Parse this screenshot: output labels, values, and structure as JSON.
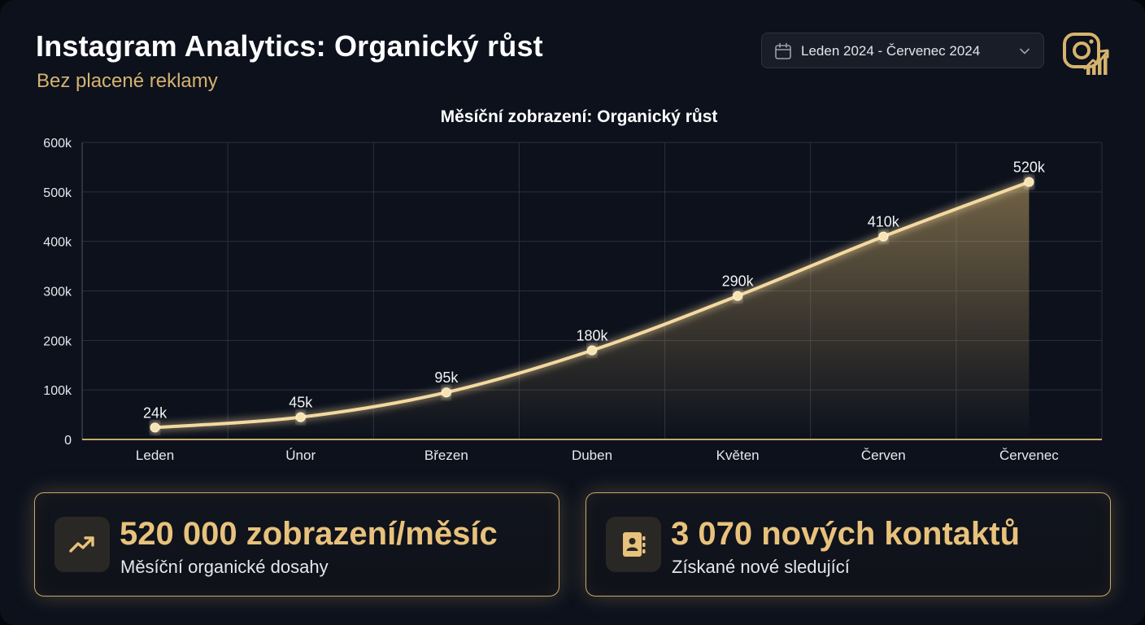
{
  "header": {
    "title": "Instagram Analytics: Organický růst",
    "subtitle": "Bez placené reklamy",
    "date_range": "Leden 2024 - Červenec 2024",
    "icons": [
      "calendar-icon",
      "chevron-down-icon",
      "instagram-growth-icon"
    ]
  },
  "chart_data": {
    "type": "area",
    "title": "Měsíční zobrazení: Organický růst",
    "xlabel": "",
    "ylabel": "",
    "categories": [
      "Leden",
      "Únor",
      "Březen",
      "Duben",
      "Květen",
      "Červen",
      "Červenec"
    ],
    "values": [
      24000,
      45000,
      95000,
      180000,
      290000,
      410000,
      520000
    ],
    "data_labels": [
      "24k",
      "45k",
      "95k",
      "180k",
      "290k",
      "410k",
      "520k"
    ],
    "ylim": [
      0,
      600000
    ],
    "yticks": [
      0,
      100000,
      200000,
      300000,
      400000,
      500000,
      600000
    ],
    "ytick_labels": [
      "0",
      "100k",
      "200k",
      "300k",
      "400k",
      "500k",
      "600k"
    ],
    "grid": true,
    "legend": "none",
    "colors": {
      "line": "#f4d9a0",
      "fill": "#d6b36e",
      "grid": "#2a303c",
      "text": "#e6e8ec"
    }
  },
  "stats": [
    {
      "value": "520 000 zobrazení/měsíc",
      "label": "Měsíční organické dosahy",
      "icon": "trending-up-icon"
    },
    {
      "value": "3 070 nových kontaktů",
      "label": "Získané nové sledující",
      "icon": "contact-book-icon"
    }
  ],
  "colors": {
    "background": "#0c111c",
    "accent": "#e8c27c",
    "subtitle": "#d6b36e",
    "card_border": "#c8a86a"
  }
}
